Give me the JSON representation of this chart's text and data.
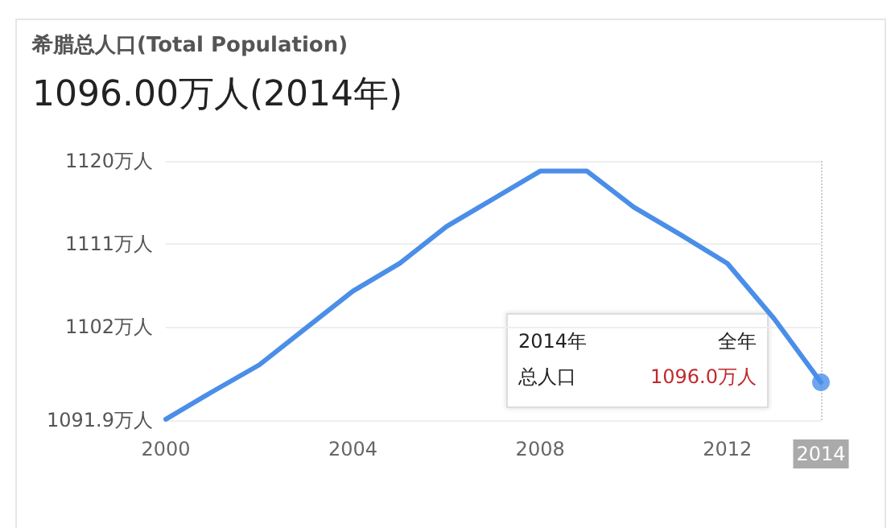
{
  "chart_data": {
    "type": "line",
    "title": "希腊总人口(Total Population)",
    "subtitle": "1096.00万人(2014年)",
    "x": [
      2000,
      2001,
      2002,
      2003,
      2004,
      2005,
      2006,
      2007,
      2008,
      2009,
      2010,
      2011,
      2012,
      2013,
      2014
    ],
    "series": [
      {
        "color": "#4a8ee8",
        "values": [
          1092.0,
          1095.0,
          1097.9,
          1101.9,
          1105.9,
          1108.9,
          1112.9,
          1115.9,
          1118.9,
          1118.9,
          1115.0,
          1112.0,
          1108.9,
          1102.9,
          1096.0
        ]
      }
    ],
    "xlim": [
      2000,
      2014
    ],
    "xticks": [
      2000,
      2004,
      2008,
      2012,
      2014
    ],
    "ylim": [
      1091.9,
      1120
    ],
    "yticks": [
      {
        "value": 1091.9,
        "label": "1091.9万人"
      },
      {
        "value": 1102,
        "label": "1102万人"
      },
      {
        "value": 1111,
        "label": "1111万人"
      },
      {
        "value": 1120,
        "label": "1120万人"
      }
    ],
    "grid": "y",
    "marker": "none",
    "line_style": "solid",
    "ref_lines": [
      {
        "axis": "x",
        "value": 2014,
        "line_style": "dotted",
        "color": "#cccccc"
      }
    ],
    "annotations": [
      "2014年",
      "全年",
      "总人口",
      "1096.0万人"
    ]
  }
}
